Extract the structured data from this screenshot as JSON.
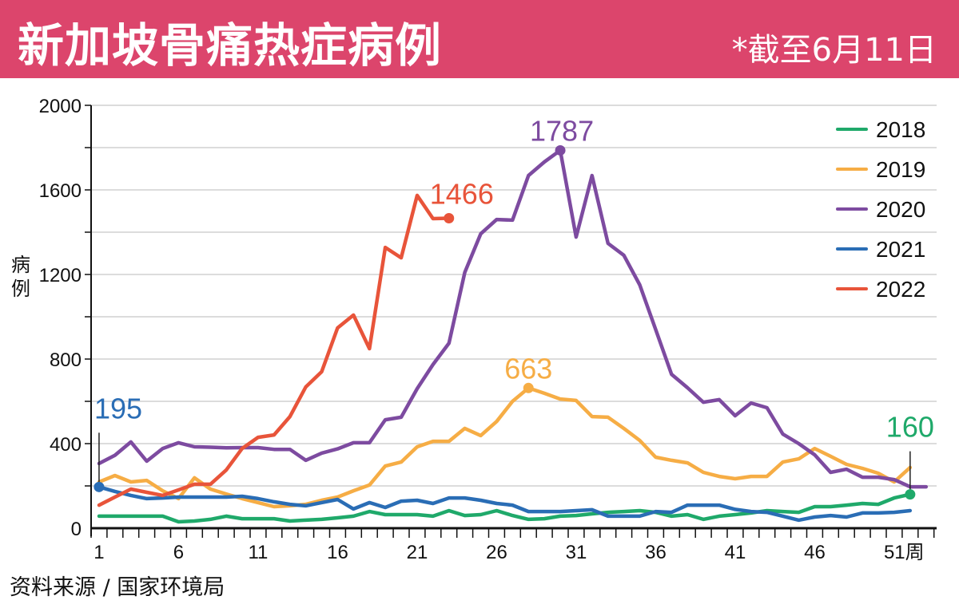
{
  "header": {
    "title": "新加坡骨痛热症病例",
    "as_of": "*截至6月11日",
    "background_color": "#dc456c"
  },
  "source": "资料来源 / 国家环境局",
  "chart_data": {
    "type": "line",
    "title": "新加坡骨痛热症病例",
    "xlabel": "周",
    "ylabel": "病例",
    "ylim": [
      0,
      2000
    ],
    "xlim": [
      0,
      53
    ],
    "yticks": [
      0,
      400,
      800,
      1200,
      1600,
      2000
    ],
    "yticks_minor": [
      200,
      600,
      1000,
      1400,
      1800
    ],
    "xtick_labels": [
      "1",
      "6",
      "11",
      "16",
      "21",
      "26",
      "31",
      "36",
      "41",
      "46",
      "51周"
    ],
    "xtick_values": [
      1,
      6,
      11,
      16,
      21,
      26,
      31,
      36,
      41,
      46,
      51
    ],
    "grid": true,
    "legend_position": "top-right",
    "series": [
      {
        "name": "2018",
        "color": "#1fa96a",
        "values": [
          57,
          57,
          57,
          57,
          57,
          30,
          34,
          42,
          57,
          45,
          45,
          45,
          34,
          38,
          42,
          49,
          57,
          79,
          64,
          64,
          64,
          57,
          83,
          60,
          64,
          83,
          60,
          42,
          45,
          57,
          60,
          68,
          75,
          79,
          83,
          75,
          57,
          64,
          42,
          57,
          64,
          72,
          83,
          79,
          75,
          102,
          102,
          109,
          117,
          113,
          143,
          160
        ]
      },
      {
        "name": "2019",
        "color": "#f6ad45",
        "values": [
          219,
          249,
          219,
          226,
          177,
          140,
          238,
          185,
          162,
          140,
          121,
          102,
          106,
          113,
          132,
          147,
          177,
          204,
          294,
          313,
          385,
          411,
          411,
          472,
          438,
          505,
          600,
          663,
          638,
          611,
          604,
          528,
          525,
          472,
          415,
          336,
          321,
          309,
          264,
          245,
          234,
          245,
          245,
          313,
          328,
          377,
          340,
          302,
          283,
          260,
          219,
          287
        ]
      },
      {
        "name": "2020",
        "color": "#7d4ba0",
        "values": [
          306,
          345,
          408,
          317,
          377,
          404,
          385,
          383,
          380,
          381,
          381,
          373,
          373,
          321,
          355,
          375,
          404,
          404,
          513,
          525,
          660,
          774,
          875,
          1210,
          1392,
          1460,
          1457,
          1668,
          1732,
          1787,
          1377,
          1668,
          1347,
          1291,
          1151,
          940,
          728,
          664,
          596,
          608,
          532,
          592,
          570,
          445,
          400,
          347,
          264,
          279,
          241,
          241,
          230,
          196,
          196
        ]
      },
      {
        "name": "2021",
        "color": "#2a6db5",
        "values": [
          195,
          174,
          155,
          140,
          143,
          147,
          147,
          147,
          147,
          151,
          140,
          125,
          113,
          106,
          121,
          136,
          91,
          121,
          98,
          128,
          132,
          117,
          143,
          143,
          132,
          117,
          109,
          79,
          79,
          79,
          83,
          87,
          57,
          57,
          57,
          79,
          75,
          109,
          109,
          109,
          89,
          79,
          75,
          57,
          38,
          53,
          60,
          53,
          72,
          72,
          75,
          83
        ]
      },
      {
        "name": "2022",
        "color": "#e8543a",
        "values": [
          109,
          147,
          185,
          170,
          155,
          181,
          208,
          208,
          275,
          377,
          430,
          441,
          528,
          668,
          740,
          947,
          1008,
          849,
          1328,
          1279,
          1574,
          1464,
          1466
        ]
      }
    ],
    "annotations": [
      {
        "text": "195",
        "series": "2021",
        "week": 1,
        "value": 195,
        "color": "#2a6db5",
        "leader_line": true
      },
      {
        "text": "1466",
        "series": "2022",
        "week": 23,
        "value": 1466,
        "color": "#e8543a"
      },
      {
        "text": "1787",
        "series": "2020",
        "week": 30,
        "value": 1787,
        "color": "#7d4ba0"
      },
      {
        "text": "663",
        "series": "2019",
        "week": 28,
        "value": 663,
        "color": "#f6ad45"
      },
      {
        "text": "160",
        "series": "2018",
        "week": 52,
        "value": 160,
        "color": "#1fa96a",
        "leader_line": true
      }
    ]
  }
}
